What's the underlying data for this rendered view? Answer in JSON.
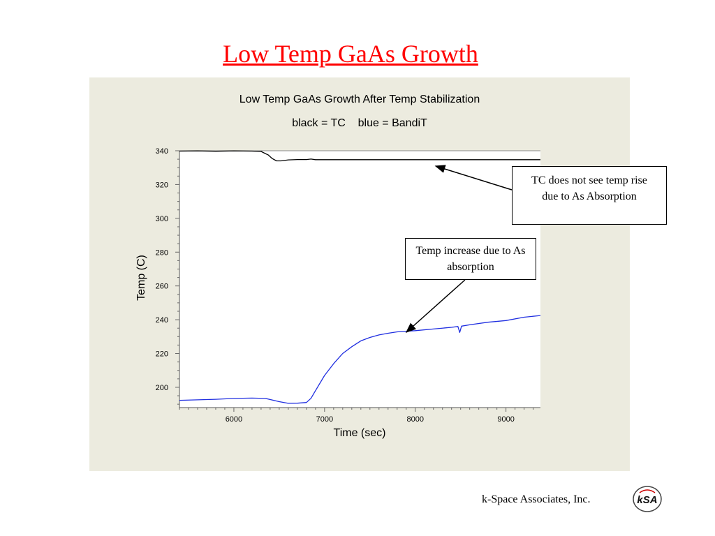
{
  "slide": {
    "title": "Low Temp GaAs Growth",
    "footer": "k-Space Associates, Inc.",
    "logo_text": "kSA",
    "title_color": "#ff0000"
  },
  "callouts": {
    "tc": "TC does not see temp rise due to As Absorption",
    "bandit": "Temp increase due to As absorption"
  },
  "chart_data": {
    "type": "line",
    "title": "Low Temp GaAs Growth After Temp Stabilization",
    "subtitle": "black = TC    blue = BandiT",
    "xlabel": "Time (sec)",
    "ylabel": "Temp (C)",
    "xlim": [
      5400,
      9380
    ],
    "ylim": [
      188,
      340
    ],
    "xticks": [
      6000,
      7000,
      8000,
      9000
    ],
    "yticks": [
      200,
      220,
      240,
      260,
      280,
      300,
      320,
      340
    ],
    "background": "#ecebdf",
    "series": [
      {
        "name": "TC",
        "color": "#000000",
        "x": [
          5400,
          5600,
          5800,
          6000,
          6200,
          6300,
          6380,
          6420,
          6470,
          6520,
          6600,
          6700,
          6800,
          6850,
          6900,
          7000,
          7500,
          8000,
          8500,
          9000,
          9380
        ],
        "y": [
          339.8,
          339.9,
          339.7,
          339.9,
          339.8,
          339.6,
          337.5,
          335.5,
          334.0,
          334.0,
          334.6,
          334.8,
          334.8,
          335.1,
          334.7,
          334.7,
          334.7,
          334.7,
          334.7,
          334.7,
          334.7
        ]
      },
      {
        "name": "BandiT",
        "color": "#1f2ee0",
        "x": [
          5400,
          5600,
          5800,
          6000,
          6200,
          6350,
          6500,
          6600,
          6700,
          6800,
          6850,
          6900,
          7000,
          7100,
          7200,
          7300,
          7400,
          7500,
          7600,
          7700,
          7800,
          7900,
          8000,
          8200,
          8400,
          8470,
          8490,
          8510,
          8600,
          8800,
          9000,
          9200,
          9380
        ],
        "y": [
          192.3,
          192.6,
          192.9,
          193.4,
          193.6,
          193.4,
          191.5,
          190.5,
          190.6,
          191.0,
          193.5,
          198.0,
          207.0,
          214.0,
          220.0,
          224.0,
          227.5,
          229.5,
          231.0,
          232.0,
          232.8,
          233.2,
          233.5,
          234.5,
          235.5,
          236.0,
          232.5,
          236.2,
          237.0,
          238.5,
          239.5,
          241.5,
          242.5
        ]
      }
    ]
  }
}
